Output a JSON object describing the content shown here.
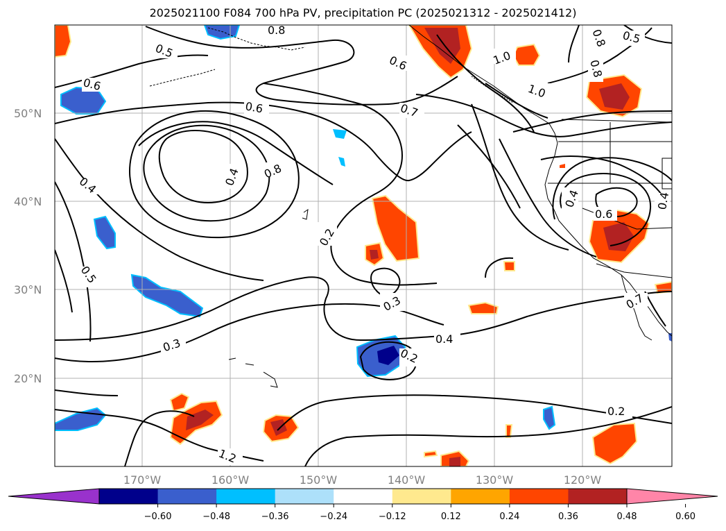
{
  "title": "2025021100 F084 700 hPa PV, precipitation PC (2025021312 - 2025021412)",
  "lat_labels": [
    "50°N",
    "40°N",
    "30°N",
    "20°N"
  ],
  "lon_labels": [
    "170°W",
    "160°W",
    "150°W",
    "140°W",
    "130°W",
    "120°W"
  ],
  "colorbar": {
    "ticks": [
      "−0.60",
      "−0.48",
      "−0.36",
      "−0.24",
      "−0.12",
      "0.12",
      "0.24",
      "0.36",
      "0.48",
      "0.60"
    ],
    "colors": [
      "#9932CC",
      "#00008B",
      "#3A5FCD",
      "#00BFFF",
      "#ADE0FA",
      "#FFFFFF",
      "#FFE98E",
      "#FFA500",
      "#FF4500",
      "#B22222",
      "#FF85A8"
    ]
  },
  "contour_labels": [
    "0.8",
    "0.5",
    "0.6",
    "0.6",
    "0.6",
    "0.7",
    "0.8",
    "0.4",
    "0.4",
    "0.5",
    "0.2",
    "0.3",
    "0.3",
    "0.4",
    "0.2",
    "0.2",
    "1.2",
    "1.0",
    "1.0",
    "0.8",
    "0.8",
    "0.5",
    "0.4",
    "0.6",
    "0.4"
  ]
}
